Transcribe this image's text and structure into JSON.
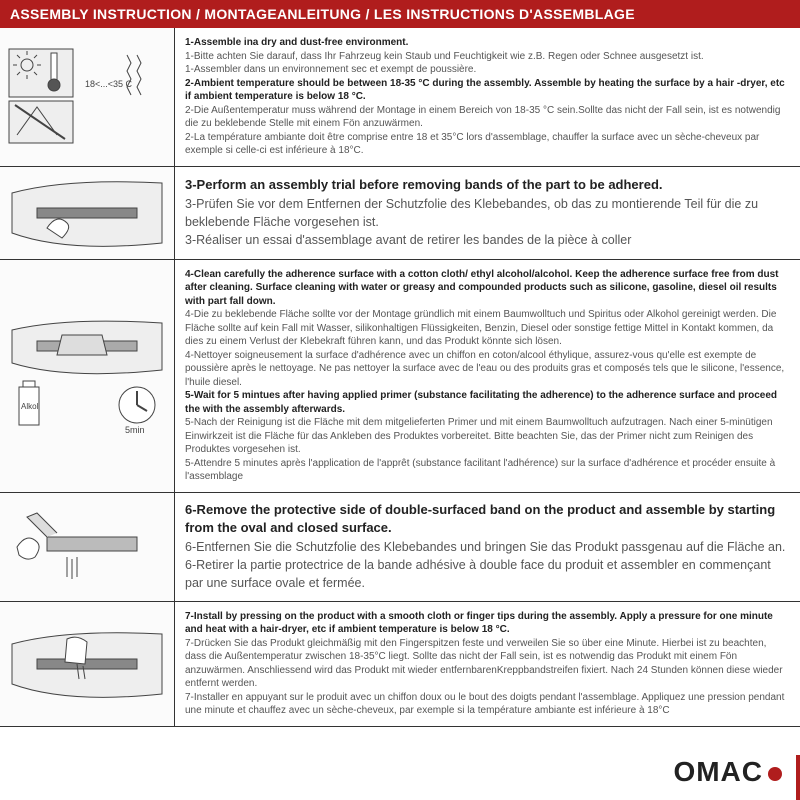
{
  "colors": {
    "header_bg": "#b01d1d",
    "header_text": "#ffffff",
    "border": "#333333",
    "body_text": "#555555",
    "bold_text": "#222222",
    "illus_stroke": "#444444",
    "illus_fill": "#eeeeee",
    "logo_text": "#222222",
    "logo_dot": "#b01d1d"
  },
  "title": "ASSEMBLY INSTRUCTION / MONTAGEANLEITUNG / LES INSTRUCTIONS D'ASSEMBLAGE",
  "logo": "OMAC",
  "steps": [
    {
      "illus": "temp",
      "big": false,
      "lines": [
        {
          "bold": true,
          "text": "1-Assemble ina dry and dust-free environment."
        },
        {
          "bold": false,
          "text": "1-Bitte achten Sie darauf, dass Ihr Fahrzeug kein Staub und Feuchtigkeit wie z.B. Regen oder Schnee ausgesetzt ist."
        },
        {
          "bold": false,
          "text": "1-Assembler dans un environnement sec et exempt de poussière."
        },
        {
          "bold": true,
          "text": "2-Ambient temperature should be between 18-35 °C  during the assembly. Assemble by heating the surface by a hair -dryer, etc if ambient temperature is below 18 °C."
        },
        {
          "bold": false,
          "text": "2-Die Außentemperatur muss während der Montage in einem Bereich von 18-35 °C  sein.Sollte das nicht der Fall sein, ist es notwendig die zu beklebende Stelle mit einem Fön anzuwärmen."
        },
        {
          "bold": false,
          "text": "2-La température ambiante doit être comprise entre 18 et 35°C lors d'assemblage, chauffer la surface avec un sèche-cheveux par exemple si celle-ci est inférieure à 18°C."
        }
      ],
      "temp_label": "18<...<35 C"
    },
    {
      "illus": "trial",
      "big": true,
      "lines": [
        {
          "bold": true,
          "text": "3-Perform an assembly trial before removing bands of the part to be adhered."
        },
        {
          "bold": false,
          "text": "3-Prüfen Sie vor dem Entfernen der Schutzfolie des Klebebandes, ob das zu montierende Teil für die zu beklebende Fläche vorgesehen ist."
        },
        {
          "bold": false,
          "text": "3-Réaliser un essai d'assemblage avant de retirer les bandes de la pièce à coller"
        }
      ]
    },
    {
      "illus": "clean",
      "big": false,
      "lines": [
        {
          "bold": true,
          "text": "4-Clean carefully the adherence surface with a cotton cloth/ ethyl alcohol/alcohol. Keep the adherence surface free from dust after cleaning. Surface cleaning with water or greasy and compounded products such as silicone, gasoline, diesel oil results with part fall down."
        },
        {
          "bold": false,
          "text": "4-Die zu beklebende Fläche sollte vor der Montage gründlich mit einem Baumwolltuch und Spiritus oder Alkohol gereinigt werden. Die Fläche sollte auf kein Fall mit Wasser, silikonhaltigen Flüssigkeiten, Benzin, Diesel oder sonstige fettige Mittel in Kontakt kommen, da dies zu einem Verlust der Klebekraft führen kann, und das Produkt könnte sich lösen."
        },
        {
          "bold": false,
          "text": "4-Nettoyer soigneusement la surface d'adhérence avec un chiffon en coton/alcool éthylique, assurez-vous qu'elle est exempte de poussière après le nettoyage. Ne pas nettoyer la surface avec de l'eau ou des produits gras et composés tels que le silicone, l'essence, l'huile diesel."
        },
        {
          "bold": true,
          "text": "5-Wait for 5 mintues after having applied primer (substance facilitating the adherence) to the adherence surface and proceed the with the assembly afterwards."
        },
        {
          "bold": false,
          "text": "5-Nach der Reinigung ist die Fläche mit dem mitgelieferten Primer und mit einem Baumwolltuch aufzutragen. Nach einer 5-minütigen Einwirkzeit ist die Fläche für das Ankleben des Produktes vorbereitet. Bitte beachten Sie, das der Primer nicht zum Reinigen des Produktes vorgesehen ist."
        },
        {
          "bold": false,
          "text": "5-Attendre 5 minutes après l'application de l'apprêt (substance facilitant l'adhérence) sur la surface d'adhérence et procéder ensuite à l'assemblage"
        }
      ],
      "bottle_label": "Alkol",
      "timer_label": "5min"
    },
    {
      "illus": "peel",
      "big": true,
      "lines": [
        {
          "bold": true,
          "text": "6-Remove the protective side of double-surfaced band on the product and assemble by starting from the oval and closed surface."
        },
        {
          "bold": false,
          "text": "6-Entfernen Sie die Schutzfolie des Klebebandes und bringen Sie das Produkt passgenau auf die Fläche an."
        },
        {
          "bold": false,
          "text": "6-Retirer la partie protectrice de la bande adhésive à double face du produit et assembler en commençant par une surface ovale et fermée."
        }
      ]
    },
    {
      "illus": "press",
      "big": false,
      "lines": [
        {
          "bold": true,
          "text": "7-Install by pressing on the product with a smooth cloth or finger tips during the assembly. Apply a pressure for one minute and heat with a hair-dryer, etc if ambient temperature is below 18 °C."
        },
        {
          "bold": false,
          "text": "7-Drücken Sie das Produkt gleichmäßig mit den Fingerspitzen feste und verweilen Sie so über eine Minute. Hierbei ist zu beachten, dass die Außentemperatur zwischen 18-35°C liegt. Sollte das nicht der Fall sein, ist es notwendig das Produkt mit einem Fön anzuwärmen. Anschliessend wird das Produkt mit wieder entfernbarenKreppbandstreifen fixiert. Nach 24 Stunden können diese wieder entfernt werden."
        },
        {
          "bold": false,
          "text": "7-Installer en appuyant sur le produit avec un chiffon doux ou le bout des doigts pendant l'assemblage. Appliquez une pression pendant une minute et chauffez avec un sèche-cheveux, par exemple si la température ambiante est inférieure à 18°C"
        }
      ]
    }
  ]
}
